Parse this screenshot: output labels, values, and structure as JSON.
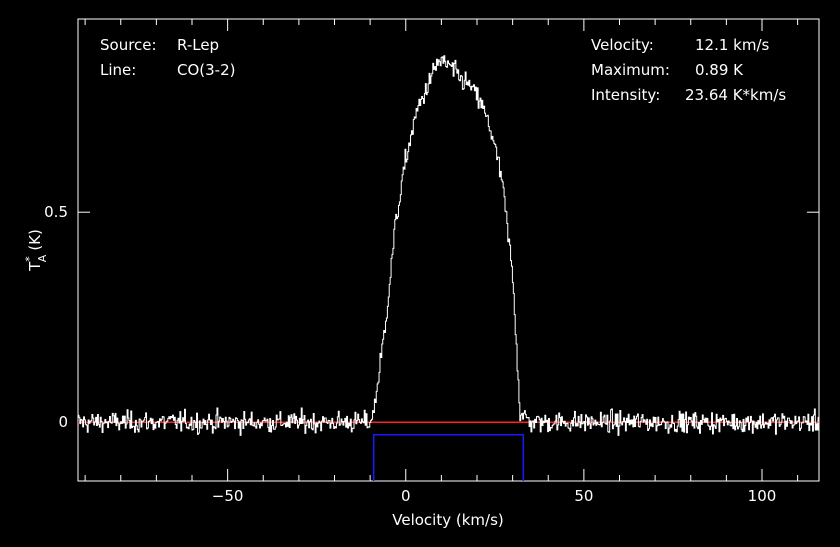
{
  "info": {
    "source_label": "Source:",
    "source_value": "R-Lep",
    "line_label": "Line:",
    "line_value": "CO(3-2)",
    "velocity_label": "Velocity:",
    "velocity_value": "12.1 km/s",
    "maximum_label": "Maximum:",
    "maximum_value": "0.89 K",
    "intensity_label": "Intensity:",
    "intensity_value": "23.64 K*km/s"
  },
  "chart_data": {
    "type": "line",
    "xlabel": "Velocity (km/s)",
    "ylabel": "T*A (K)",
    "ylabel_main": "T",
    "ylabel_sup": "*",
    "ylabel_sub": "A",
    "ylabel_unit": "(K)",
    "xlim": [
      -92,
      116
    ],
    "ylim": [
      -0.14,
      0.96
    ],
    "x_ticks": [
      -50,
      0,
      50,
      100
    ],
    "y_ticks": [
      0,
      0.5
    ],
    "x_tick_labels": [
      "−50",
      "0",
      "50",
      "100"
    ],
    "y_tick_labels": [
      "0",
      "0.5"
    ],
    "baseline": {
      "value": 0,
      "color": "#ff2020"
    },
    "integration_window": {
      "x": [
        -9,
        33
      ],
      "y_top": -0.03,
      "color": "#1a1aff"
    },
    "profile": {
      "x": [
        -92,
        -10,
        -9,
        -6,
        -3,
        0,
        3,
        6,
        9,
        12,
        15,
        18,
        21,
        24,
        27,
        30,
        32,
        35,
        116
      ],
      "y": [
        0,
        0,
        0.03,
        0.22,
        0.47,
        0.63,
        0.74,
        0.8,
        0.86,
        0.85,
        0.82,
        0.8,
        0.76,
        0.69,
        0.57,
        0.34,
        0.02,
        0,
        0
      ]
    },
    "noise_rms": 0.017,
    "line_color": "#ffffff"
  }
}
